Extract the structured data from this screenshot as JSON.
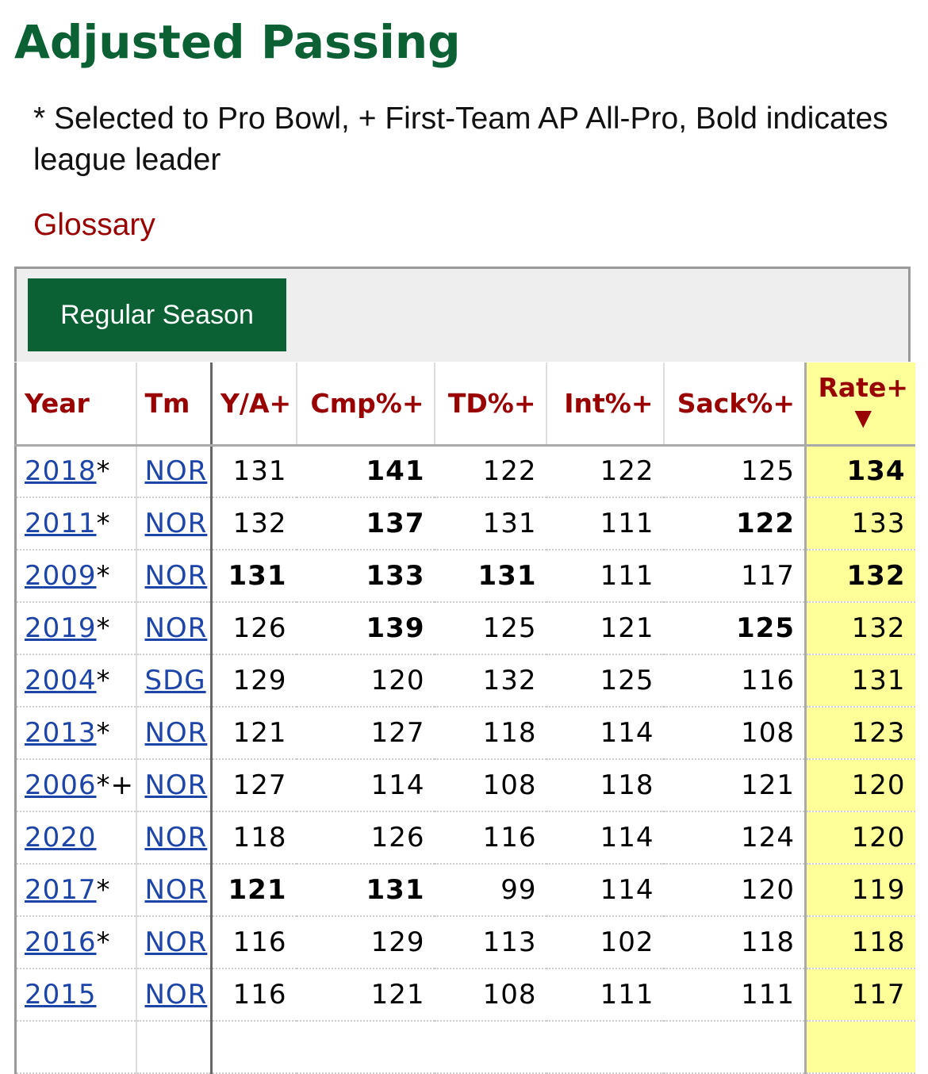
{
  "page": {
    "title": "Adjusted Passing",
    "note": "* Selected to Pro Bowl, + First-Team AP All-Pro, Bold indicates league leader",
    "glossary_link": "Glossary"
  },
  "tabs": {
    "active": "Regular Season"
  },
  "colors": {
    "title_green": "#0b6134",
    "header_red": "#990000",
    "link_blue": "#1d45a8",
    "sorted_column_bg": "#ffff99"
  },
  "table": {
    "columns": [
      "Year",
      "Tm",
      "Y/A+",
      "Cmp%+",
      "TD%+",
      "Int%+",
      "Sack%+",
      "Rate+"
    ],
    "sort_indicator": "▼",
    "rows": [
      {
        "year": "2018",
        "mark": "*",
        "team": "NOR",
        "ya": "131",
        "cmp": "141",
        "td": "122",
        "int": "122",
        "sack": "125",
        "rate": "134",
        "bold": [
          "cmp",
          "rate"
        ]
      },
      {
        "year": "2011",
        "mark": "*",
        "team": "NOR",
        "ya": "132",
        "cmp": "137",
        "td": "131",
        "int": "111",
        "sack": "122",
        "rate": "133",
        "bold": [
          "cmp",
          "sack"
        ]
      },
      {
        "year": "2009",
        "mark": "*",
        "team": "NOR",
        "ya": "131",
        "cmp": "133",
        "td": "131",
        "int": "111",
        "sack": "117",
        "rate": "132",
        "bold": [
          "ya",
          "cmp",
          "td",
          "rate"
        ]
      },
      {
        "year": "2019",
        "mark": "*",
        "team": "NOR",
        "ya": "126",
        "cmp": "139",
        "td": "125",
        "int": "121",
        "sack": "125",
        "rate": "132",
        "bold": [
          "cmp",
          "sack"
        ]
      },
      {
        "year": "2004",
        "mark": "*",
        "team": "SDG",
        "ya": "129",
        "cmp": "120",
        "td": "132",
        "int": "125",
        "sack": "116",
        "rate": "131",
        "bold": []
      },
      {
        "year": "2013",
        "mark": "*",
        "team": "NOR",
        "ya": "121",
        "cmp": "127",
        "td": "118",
        "int": "114",
        "sack": "108",
        "rate": "123",
        "bold": []
      },
      {
        "year": "2006",
        "mark": "*+",
        "team": "NOR",
        "ya": "127",
        "cmp": "114",
        "td": "108",
        "int": "118",
        "sack": "121",
        "rate": "120",
        "bold": []
      },
      {
        "year": "2020",
        "mark": "",
        "team": "NOR",
        "ya": "118",
        "cmp": "126",
        "td": "116",
        "int": "114",
        "sack": "124",
        "rate": "120",
        "bold": []
      },
      {
        "year": "2017",
        "mark": "*",
        "team": "NOR",
        "ya": "121",
        "cmp": "131",
        "td": "99",
        "int": "114",
        "sack": "120",
        "rate": "119",
        "bold": [
          "ya",
          "cmp"
        ]
      },
      {
        "year": "2016",
        "mark": "*",
        "team": "NOR",
        "ya": "116",
        "cmp": "129",
        "td": "113",
        "int": "102",
        "sack": "118",
        "rate": "118",
        "bold": []
      },
      {
        "year": "2015",
        "mark": "",
        "team": "NOR",
        "ya": "116",
        "cmp": "121",
        "td": "108",
        "int": "111",
        "sack": "111",
        "rate": "117",
        "bold": []
      }
    ]
  }
}
